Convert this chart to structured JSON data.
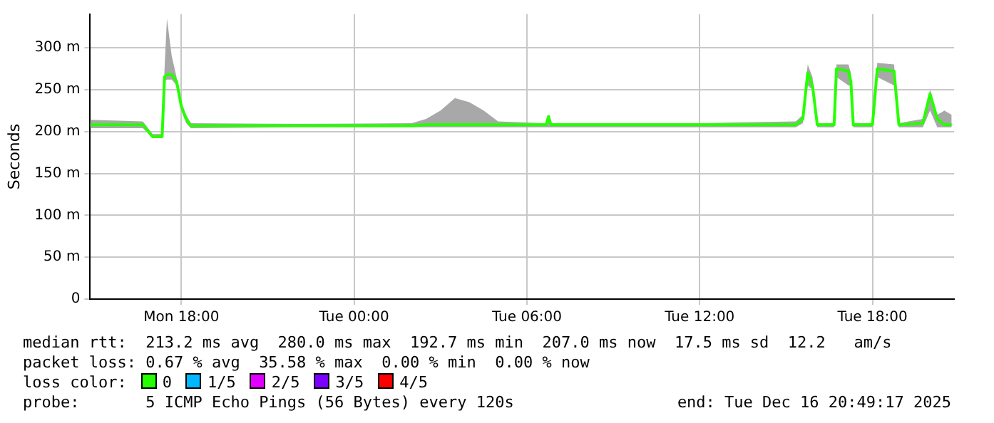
{
  "chart_data": {
    "type": "line",
    "ylabel": "Seconds",
    "legend_title": "loss color:",
    "legend": "bottom",
    "grid": true,
    "marker": "none",
    "line_style": "solid",
    "x": [
      "2025-12-15T14:50",
      "2025-12-15T16:40",
      "2025-12-15T17:00",
      "2025-12-15T17:20",
      "2025-12-15T17:25",
      "2025-12-15T17:30",
      "2025-12-15T17:40",
      "2025-12-15T17:50",
      "2025-12-15T18:00",
      "2025-12-15T18:10",
      "2025-12-15T18:20",
      "2025-12-15T22:00",
      "2025-12-16T02:00",
      "2025-12-16T02:30",
      "2025-12-16T03:00",
      "2025-12-16T03:30",
      "2025-12-16T04:00",
      "2025-12-16T04:30",
      "2025-12-16T05:00",
      "2025-12-16T06:40",
      "2025-12-16T06:45",
      "2025-12-16T06:50",
      "2025-12-16T12:00",
      "2025-12-16T15:20",
      "2025-12-16T15:35",
      "2025-12-16T15:45",
      "2025-12-16T15:55",
      "2025-12-16T16:05",
      "2025-12-16T16:40",
      "2025-12-16T16:45",
      "2025-12-16T17:10",
      "2025-12-16T17:15",
      "2025-12-16T17:20",
      "2025-12-16T18:00",
      "2025-12-16T18:10",
      "2025-12-16T18:45",
      "2025-12-16T18:55",
      "2025-12-16T19:45",
      "2025-12-16T20:00",
      "2025-12-16T20:15",
      "2025-12-16T20:30",
      "2025-12-16T20:45"
    ],
    "xlim": [
      "2025-12-15T14:50",
      "2025-12-16T20:50"
    ],
    "xticks": [
      {
        "value": "2025-12-15T18:00",
        "label": "Mon 18:00"
      },
      {
        "value": "2025-12-16T00:00",
        "label": "Tue 00:00"
      },
      {
        "value": "2025-12-16T06:00",
        "label": "Tue 06:00"
      },
      {
        "value": "2025-12-16T12:00",
        "label": "Tue 12:00"
      },
      {
        "value": "2025-12-16T18:00",
        "label": "Tue 18:00"
      }
    ],
    "ylim": [
      0,
      340
    ],
    "yticks": [
      0,
      {
        "value": 50,
        "label": "50 m"
      },
      {
        "value": 100,
        "label": "100 m"
      },
      {
        "value": 150,
        "label": "150 m"
      },
      {
        "value": 200,
        "label": "200 m"
      },
      {
        "value": 250,
        "label": "250 m"
      },
      {
        "value": 300,
        "label": "300 m"
      }
    ],
    "series": [
      {
        "name": "0",
        "color": "#26ff00",
        "values": [
          208,
          208,
          194,
          194,
          265,
          268,
          268,
          260,
          230,
          215,
          207,
          207,
          207,
          208,
          208,
          208,
          208,
          208,
          208,
          208,
          218,
          208,
          208,
          208,
          215,
          270,
          255,
          208,
          208,
          275,
          272,
          260,
          208,
          208,
          275,
          272,
          208,
          210,
          245,
          215,
          208,
          208
        ],
        "lower": [
          204,
          204,
          192,
          192,
          260,
          262,
          262,
          255,
          225,
          210,
          204,
          205,
          205,
          205,
          205,
          205,
          205,
          205,
          205,
          205,
          205,
          205,
          205,
          205,
          210,
          255,
          250,
          205,
          205,
          265,
          255,
          255,
          205,
          205,
          265,
          255,
          205,
          205,
          225,
          205,
          205,
          205
        ],
        "upper": [
          214,
          212,
          197,
          197,
          275,
          335,
          290,
          265,
          235,
          220,
          210,
          209,
          210,
          215,
          225,
          240,
          235,
          225,
          212,
          210,
          220,
          210,
          210,
          212,
          220,
          280,
          265,
          210,
          210,
          280,
          280,
          270,
          210,
          210,
          282,
          280,
          210,
          215,
          250,
          220,
          225,
          220
        ]
      },
      {
        "name": "1/5",
        "color": "#00b8ff",
        "values": [
          null,
          null,
          null,
          null,
          null,
          null,
          null,
          null,
          null,
          null,
          null,
          null,
          null,
          null,
          null,
          null,
          null,
          null,
          null,
          null,
          null,
          null,
          null,
          null,
          null,
          null,
          null,
          null,
          null,
          null,
          null,
          null,
          null,
          null,
          null,
          null,
          null,
          null,
          null,
          null,
          null,
          null
        ]
      },
      {
        "name": "2/5",
        "color": "#e000ff",
        "values": [
          null,
          null,
          null,
          null,
          null,
          null,
          null,
          null,
          null,
          null,
          null,
          null,
          null,
          null,
          null,
          null,
          null,
          null,
          null,
          null,
          null,
          null,
          null,
          null,
          null,
          null,
          null,
          null,
          null,
          null,
          null,
          null,
          null,
          null,
          null,
          null,
          null,
          null,
          null,
          null,
          null,
          null
        ]
      },
      {
        "name": "3/5",
        "color": "#7a00ff",
        "values": [
          null,
          null,
          null,
          null,
          null,
          null,
          null,
          null,
          null,
          null,
          null,
          null,
          null,
          null,
          null,
          null,
          null,
          null,
          null,
          null,
          null,
          null,
          null,
          null,
          null,
          null,
          null,
          null,
          null,
          null,
          null,
          null,
          null,
          null,
          null,
          null,
          null,
          null,
          null,
          null,
          null,
          null
        ]
      },
      {
        "name": "4/5",
        "color": "#ff0000",
        "values": [
          null,
          null,
          null,
          null,
          null,
          null,
          null,
          null,
          null,
          null,
          null,
          null,
          null,
          null,
          null,
          null,
          null,
          null,
          null,
          null,
          null,
          null,
          null,
          null,
          null,
          null,
          null,
          null,
          null,
          null,
          null,
          null,
          null,
          null,
          null,
          null,
          null,
          null,
          null,
          null,
          null,
          null
        ]
      }
    ],
    "annotations": [
      "median rtt:  213.2 ms avg  280.0 ms max  192.7 ms min  207.0 ms now  17.5 ms sd  12.2   am/s",
      "packet loss: 0.67 % avg  35.58 % max  0.00 % min  0.00 % now",
      "probe:       5 ICMP Echo Pings (56 Bytes) every 120s",
      "end: Tue Dec 16 20:49:17 2025"
    ]
  }
}
